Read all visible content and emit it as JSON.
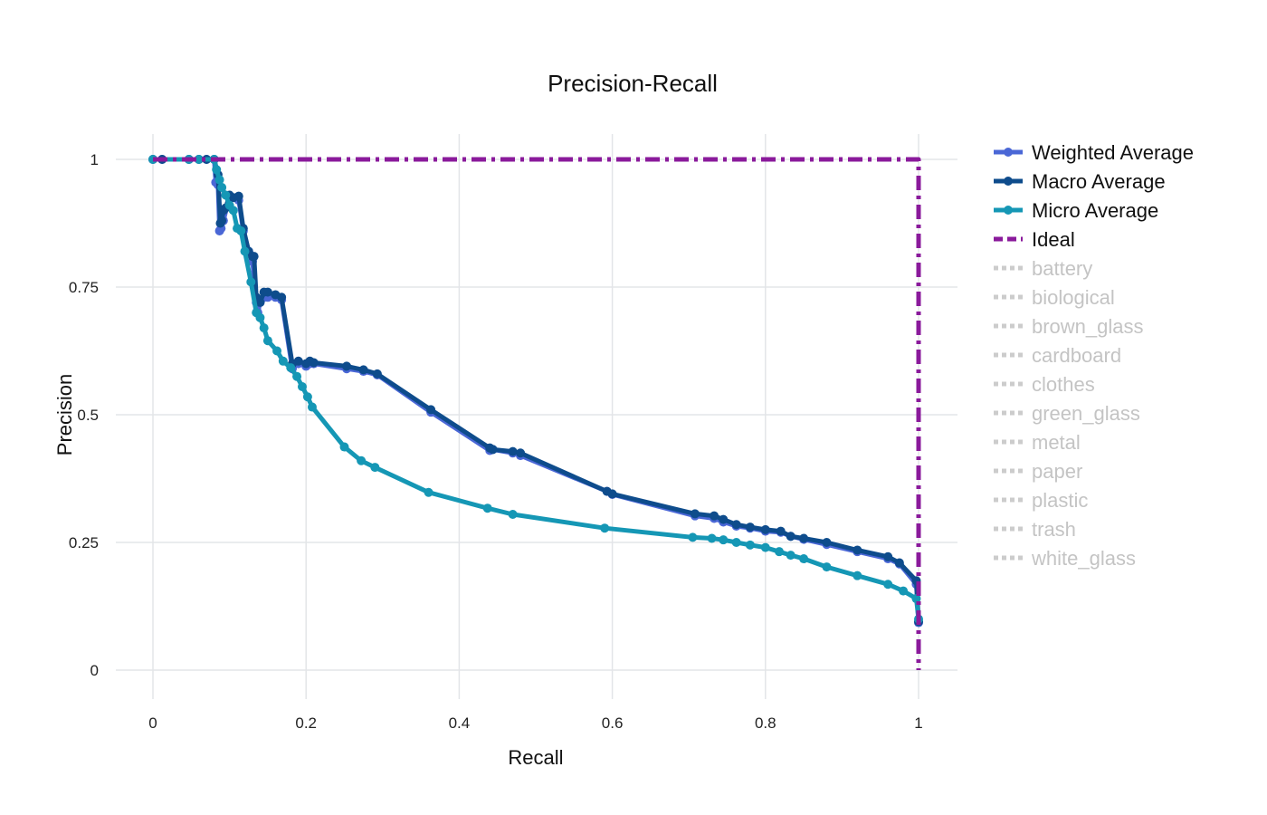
{
  "chart_data": {
    "type": "line",
    "title": "Precision-Recall",
    "xlabel": "Recall",
    "ylabel": "Precision",
    "xlim": [
      0,
      1
    ],
    "ylim": [
      0,
      1
    ],
    "x_ticks": [
      "0",
      "0.2",
      "0.4",
      "0.6",
      "0.8",
      "1"
    ],
    "y_ticks": [
      "0",
      "0.25",
      "0.5",
      "0.75",
      "1"
    ],
    "grid": true,
    "legend_position": "right",
    "series": [
      {
        "name": "Weighted Average",
        "color": "#4a67d6",
        "visible": true,
        "x": [
          0,
          0.012,
          0.047,
          0.06,
          0.07,
          0.08,
          0.082,
          0.085,
          0.087,
          0.089,
          0.09,
          0.092,
          0.1,
          0.112,
          0.118,
          0.125,
          0.13,
          0.135,
          0.137,
          0.14,
          0.15,
          0.16,
          0.168,
          0.182,
          0.19,
          0.2,
          0.205,
          0.21,
          0.253,
          0.275,
          0.293,
          0.363,
          0.44,
          0.444,
          0.47,
          0.48,
          0.593,
          0.6,
          0.708,
          0.733,
          0.745,
          0.762,
          0.78,
          0.8,
          0.82,
          0.833,
          0.85,
          0.88,
          0.92,
          0.96,
          0.975,
          0.997,
          1
        ],
        "y": [
          1,
          1,
          1,
          1,
          1,
          1,
          0.955,
          0.95,
          0.86,
          0.865,
          0.9,
          0.88,
          0.925,
          0.92,
          0.86,
          0.82,
          0.8,
          0.72,
          0.7,
          0.72,
          0.73,
          0.73,
          0.725,
          0.59,
          0.6,
          0.595,
          0.6,
          0.6,
          0.59,
          0.585,
          0.578,
          0.505,
          0.43,
          0.432,
          0.425,
          0.42,
          0.35,
          0.344,
          0.302,
          0.297,
          0.29,
          0.282,
          0.278,
          0.272,
          0.27,
          0.262,
          0.256,
          0.246,
          0.232,
          0.218,
          0.208,
          0.168,
          0.093
        ]
      },
      {
        "name": "Macro Average",
        "color": "#0e4c8c",
        "visible": true,
        "x": [
          0,
          0.012,
          0.047,
          0.06,
          0.07,
          0.08,
          0.085,
          0.088,
          0.09,
          0.092,
          0.095,
          0.1,
          0.105,
          0.112,
          0.118,
          0.125,
          0.13,
          0.132,
          0.135,
          0.14,
          0.145,
          0.15,
          0.16,
          0.168,
          0.182,
          0.19,
          0.2,
          0.205,
          0.21,
          0.253,
          0.275,
          0.293,
          0.363,
          0.44,
          0.444,
          0.47,
          0.48,
          0.593,
          0.6,
          0.708,
          0.733,
          0.745,
          0.762,
          0.78,
          0.8,
          0.82,
          0.833,
          0.85,
          0.88,
          0.92,
          0.96,
          0.975,
          0.997,
          1
        ],
        "y": [
          1,
          1,
          1,
          1,
          1,
          1,
          0.97,
          0.875,
          0.88,
          0.9,
          0.905,
          0.93,
          0.925,
          0.928,
          0.865,
          0.82,
          0.81,
          0.81,
          0.73,
          0.72,
          0.74,
          0.74,
          0.735,
          0.73,
          0.6,
          0.605,
          0.6,
          0.605,
          0.602,
          0.595,
          0.588,
          0.58,
          0.51,
          0.435,
          0.432,
          0.428,
          0.425,
          0.35,
          0.345,
          0.306,
          0.302,
          0.295,
          0.285,
          0.28,
          0.275,
          0.272,
          0.262,
          0.258,
          0.25,
          0.235,
          0.222,
          0.21,
          0.175,
          0.095
        ]
      },
      {
        "name": "Micro Average",
        "color": "#1597b5",
        "visible": true,
        "x": [
          0,
          0.047,
          0.06,
          0.08,
          0.083,
          0.087,
          0.09,
          0.095,
          0.1,
          0.105,
          0.11,
          0.115,
          0.12,
          0.128,
          0.135,
          0.14,
          0.145,
          0.15,
          0.162,
          0.17,
          0.18,
          0.188,
          0.195,
          0.202,
          0.208,
          0.25,
          0.272,
          0.29,
          0.36,
          0.437,
          0.47,
          0.59,
          0.705,
          0.73,
          0.745,
          0.762,
          0.78,
          0.8,
          0.818,
          0.833,
          0.85,
          0.88,
          0.92,
          0.96,
          0.98,
          0.997,
          1
        ],
        "y": [
          1,
          1,
          1,
          1,
          0.98,
          0.96,
          0.945,
          0.93,
          0.91,
          0.9,
          0.865,
          0.86,
          0.82,
          0.76,
          0.7,
          0.69,
          0.67,
          0.645,
          0.625,
          0.605,
          0.592,
          0.575,
          0.555,
          0.535,
          0.515,
          0.437,
          0.41,
          0.397,
          0.348,
          0.317,
          0.305,
          0.278,
          0.26,
          0.258,
          0.255,
          0.25,
          0.245,
          0.24,
          0.232,
          0.225,
          0.218,
          0.202,
          0.185,
          0.168,
          0.155,
          0.14,
          0.1
        ]
      },
      {
        "name": "Ideal",
        "color": "#8a1a9b",
        "visible": true,
        "dash": "dashdot",
        "x": [
          0,
          1,
          1
        ],
        "y": [
          1,
          1,
          0
        ]
      },
      {
        "name": "battery",
        "color": "#cccccc",
        "visible": false
      },
      {
        "name": "biological",
        "color": "#cccccc",
        "visible": false
      },
      {
        "name": "brown_glass",
        "color": "#cccccc",
        "visible": false
      },
      {
        "name": "cardboard",
        "color": "#cccccc",
        "visible": false
      },
      {
        "name": "clothes",
        "color": "#cccccc",
        "visible": false
      },
      {
        "name": "green_glass",
        "color": "#cccccc",
        "visible": false
      },
      {
        "name": "metal",
        "color": "#cccccc",
        "visible": false
      },
      {
        "name": "paper",
        "color": "#cccccc",
        "visible": false
      },
      {
        "name": "plastic",
        "color": "#cccccc",
        "visible": false
      },
      {
        "name": "trash",
        "color": "#cccccc",
        "visible": false
      },
      {
        "name": "white_glass",
        "color": "#cccccc",
        "visible": false
      }
    ]
  }
}
